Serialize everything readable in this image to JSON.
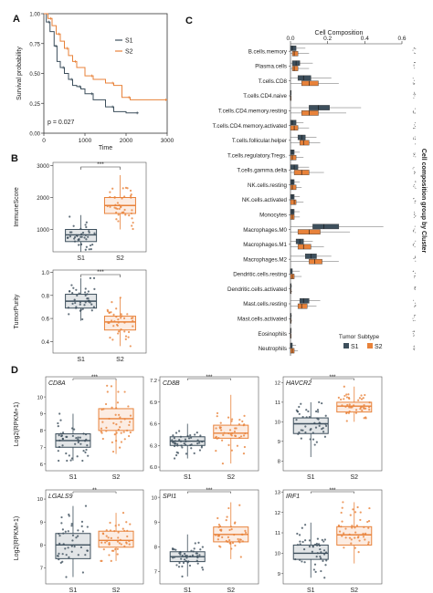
{
  "colors": {
    "s1": "#3d4f5c",
    "s2": "#e8823a",
    "s1_fill": "#4a5a66",
    "s2_fill": "#f08a3c"
  },
  "panel_labels": {
    "a": "A",
    "b": "B",
    "c": "C",
    "d": "D"
  },
  "chart_data": [
    {
      "type": "line",
      "panel": "A",
      "ylabel": "Survival probability",
      "xlabel": "Time",
      "xlim": [
        0,
        3000
      ],
      "ylim": [
        0,
        1.0
      ],
      "xticks": [
        "0",
        "1000",
        "2000",
        "3000"
      ],
      "yticks": [
        "0.00",
        "0.25",
        "0.50",
        "0.75",
        "1.00"
      ],
      "annotation": "p = 0.027",
      "legend": [
        "S1",
        "S2"
      ],
      "legend_position": "top-right",
      "series": [
        {
          "name": "S1",
          "x": [
            0,
            60,
            150,
            250,
            320,
            400,
            500,
            600,
            700,
            800,
            900,
            1000,
            1200,
            1500,
            1700,
            2000,
            2300
          ],
          "values": [
            1.0,
            0.93,
            0.85,
            0.73,
            0.6,
            0.55,
            0.5,
            0.45,
            0.4,
            0.39,
            0.37,
            0.33,
            0.28,
            0.22,
            0.18,
            0.17,
            0.17
          ]
        },
        {
          "name": "S2",
          "x": [
            0,
            100,
            200,
            300,
            400,
            500,
            600,
            700,
            800,
            1000,
            1200,
            1500,
            1700,
            1900,
            2100,
            2500,
            3000
          ],
          "values": [
            1.0,
            0.96,
            0.9,
            0.83,
            0.77,
            0.71,
            0.65,
            0.6,
            0.55,
            0.48,
            0.45,
            0.42,
            0.4,
            0.3,
            0.28,
            0.28,
            0.28
          ]
        }
      ]
    },
    {
      "type": "box",
      "panel": "B-top",
      "ylabel": "ImmuneScore",
      "categories": [
        "S1",
        "S2"
      ],
      "yticks": [
        "1000",
        "2000",
        "3000"
      ],
      "ylim": [
        300,
        3100
      ],
      "significance": "***",
      "boxes": [
        {
          "name": "S1",
          "q1": 620,
          "median": 830,
          "q3": 1000,
          "lo": 300,
          "hi": 1450
        },
        {
          "name": "S2",
          "q1": 1500,
          "median": 1750,
          "q3": 2000,
          "lo": 1000,
          "hi": 2700
        }
      ]
    },
    {
      "type": "box",
      "panel": "B-bottom",
      "ylabel": "TumorPurity",
      "categories": [
        "S1",
        "S2"
      ],
      "yticks": [
        "0.4",
        "0.6",
        "0.8",
        "1.0"
      ],
      "ylim": [
        0.3,
        1.02
      ],
      "significance": "***",
      "boxes": [
        {
          "name": "S1",
          "q1": 0.69,
          "median": 0.75,
          "q3": 0.81,
          "lo": 0.58,
          "hi": 0.95
        },
        {
          "name": "S2",
          "q1": 0.5,
          "median": 0.57,
          "q3": 0.62,
          "lo": 0.36,
          "hi": 0.78
        }
      ]
    },
    {
      "type": "box",
      "panel": "C",
      "title": "Cell Composition",
      "side_label": "Cell composition group by Cluster",
      "legend_title": "Tumor Subtype",
      "legend": [
        "S1",
        "S2"
      ],
      "xticks": [
        "0.0",
        "0.2",
        "0.4",
        "0.6"
      ],
      "xlim": [
        0,
        0.6
      ],
      "categories": [
        "B.cells.memory",
        "Plasma.cells",
        "T.cells.CD8",
        "T.cells.CD4.naive",
        "T.cells.CD4.memory.resting",
        "T.cells.CD4.memory.activated",
        "T.cells.follicular.helper",
        "T.cells.regulatory.Tregs.",
        "T.cells.gamma.delta",
        "NK.cells.resting",
        "NK.cells.activated",
        "Monocytes",
        "Macrophages.M0",
        "Macrophages.M1",
        "Macrophages.M2",
        "Dendritic.cells.resting",
        "Dendritic.cells.activated",
        "Mast.cells.resting",
        "Mast.cells.activated",
        "Eosinophils",
        "Neutrophils"
      ],
      "series": [
        {
          "name": "S1",
          "boxes": [
            [
              0.0,
              0.0,
              0.01,
              0.03,
              0.08
            ],
            [
              0.0,
              0.01,
              0.03,
              0.05,
              0.12
            ],
            [
              0.0,
              0.04,
              0.07,
              0.11,
              0.22
            ],
            [
              0.0,
              0.0,
              0.0,
              0.0,
              0.0
            ],
            [
              0.0,
              0.1,
              0.15,
              0.21,
              0.38
            ],
            [
              0.0,
              0.0,
              0.01,
              0.03,
              0.07
            ],
            [
              0.0,
              0.04,
              0.06,
              0.08,
              0.14
            ],
            [
              0.0,
              0.0,
              0.01,
              0.02,
              0.05
            ],
            [
              0.0,
              0.0,
              0.02,
              0.04,
              0.1
            ],
            [
              0.0,
              0.0,
              0.01,
              0.02,
              0.05
            ],
            [
              0.0,
              0.0,
              0.01,
              0.02,
              0.05
            ],
            [
              0.0,
              0.0,
              0.01,
              0.02,
              0.05
            ],
            [
              0.0,
              0.12,
              0.18,
              0.26,
              0.5
            ],
            [
              0.0,
              0.03,
              0.05,
              0.07,
              0.12
            ],
            [
              0.0,
              0.08,
              0.11,
              0.14,
              0.22
            ],
            [
              0.0,
              0.0,
              0.0,
              0.01,
              0.05
            ],
            [
              0.0,
              0.0,
              0.0,
              0.0,
              0.01
            ],
            [
              0.0,
              0.05,
              0.07,
              0.1,
              0.16
            ],
            [
              0.0,
              0.0,
              0.0,
              0.0,
              0.01
            ],
            [
              0.0,
              0.0,
              0.0,
              0.0,
              0.0
            ],
            [
              0.0,
              0.0,
              0.0,
              0.01,
              0.03
            ]
          ]
        },
        {
          "name": "S2",
          "boxes": [
            [
              0.0,
              0.01,
              0.02,
              0.04,
              0.1
            ],
            [
              0.0,
              0.01,
              0.02,
              0.04,
              0.1
            ],
            [
              0.0,
              0.06,
              0.1,
              0.15,
              0.26
            ],
            [
              0.0,
              0.0,
              0.0,
              0.0,
              0.0
            ],
            [
              0.0,
              0.06,
              0.1,
              0.15,
              0.3
            ],
            [
              0.0,
              0.0,
              0.02,
              0.04,
              0.1
            ],
            [
              0.0,
              0.05,
              0.07,
              0.1,
              0.16
            ],
            [
              0.0,
              0.0,
              0.01,
              0.03,
              0.07
            ],
            [
              0.0,
              0.02,
              0.06,
              0.1,
              0.18
            ],
            [
              0.0,
              0.0,
              0.01,
              0.03,
              0.06
            ],
            [
              0.0,
              0.0,
              0.02,
              0.03,
              0.07
            ],
            [
              0.0,
              0.0,
              0.01,
              0.02,
              0.05
            ],
            [
              0.0,
              0.04,
              0.1,
              0.16,
              0.32
            ],
            [
              0.0,
              0.04,
              0.07,
              0.11,
              0.18
            ],
            [
              0.0,
              0.1,
              0.13,
              0.17,
              0.26
            ],
            [
              0.0,
              0.0,
              0.01,
              0.02,
              0.06
            ],
            [
              0.0,
              0.0,
              0.0,
              0.0,
              0.01
            ],
            [
              0.0,
              0.04,
              0.06,
              0.09,
              0.14
            ],
            [
              0.0,
              0.0,
              0.0,
              0.0,
              0.01
            ],
            [
              0.0,
              0.0,
              0.0,
              0.0,
              0.0
            ],
            [
              0.0,
              0.0,
              0.01,
              0.02,
              0.04
            ]
          ]
        }
      ]
    },
    {
      "type": "box",
      "panel": "D",
      "ylabel": "Log2(RPKM+1)",
      "categories": [
        "S1",
        "S2"
      ],
      "genes": [
        {
          "gene": "CD8A",
          "sig": "***",
          "ylim": [
            5.6,
            11.2
          ],
          "yticks": [
            "6",
            "7",
            "8",
            "9",
            "10"
          ],
          "s1": [
            6.2,
            7.0,
            7.4,
            7.8,
            9.0
          ],
          "s2": [
            6.6,
            8.0,
            8.7,
            9.3,
            11.0
          ]
        },
        {
          "gene": "CD8B",
          "sig": "***",
          "ylim": [
            5.95,
            7.25
          ],
          "yticks": [
            "6.0",
            "6.3",
            "6.6",
            "6.9",
            "7.2"
          ],
          "s1": [
            6.12,
            6.3,
            6.36,
            6.42,
            6.6
          ],
          "s2": [
            6.05,
            6.4,
            6.47,
            6.58,
            7.0
          ]
        },
        {
          "gene": "HAVCR2",
          "sig": "***",
          "ylim": [
            7.5,
            12.3
          ],
          "yticks": [
            "8",
            "9",
            "10",
            "11",
            "12"
          ],
          "s1": [
            8.2,
            9.4,
            9.9,
            10.2,
            11.0
          ],
          "s2": [
            10.0,
            10.5,
            10.8,
            11.0,
            11.8
          ]
        },
        {
          "gene": "LGALS9",
          "sig": "**",
          "ylim": [
            6.3,
            10.4
          ],
          "yticks": [
            "7",
            "8",
            "9",
            "10"
          ],
          "s1": [
            6.6,
            7.4,
            8.0,
            8.5,
            9.7
          ],
          "s2": [
            7.3,
            7.9,
            8.2,
            8.6,
            9.4
          ]
        },
        {
          "gene": "SPI1",
          "sig": "***",
          "ylim": [
            6.5,
            10.3
          ],
          "yticks": [
            "7",
            "8",
            "9",
            "10"
          ],
          "s1": [
            6.8,
            7.4,
            7.6,
            7.8,
            8.5
          ],
          "s2": [
            7.5,
            8.2,
            8.5,
            8.8,
            9.8
          ]
        },
        {
          "gene": "IRF1",
          "sig": "***",
          "ylim": [
            8.5,
            13.1
          ],
          "yticks": [
            "9",
            "10",
            "11",
            "12",
            "13"
          ],
          "s1": [
            8.8,
            9.7,
            10.0,
            10.4,
            11.5
          ],
          "s2": [
            9.5,
            10.4,
            10.9,
            11.3,
            12.5
          ]
        }
      ]
    }
  ]
}
